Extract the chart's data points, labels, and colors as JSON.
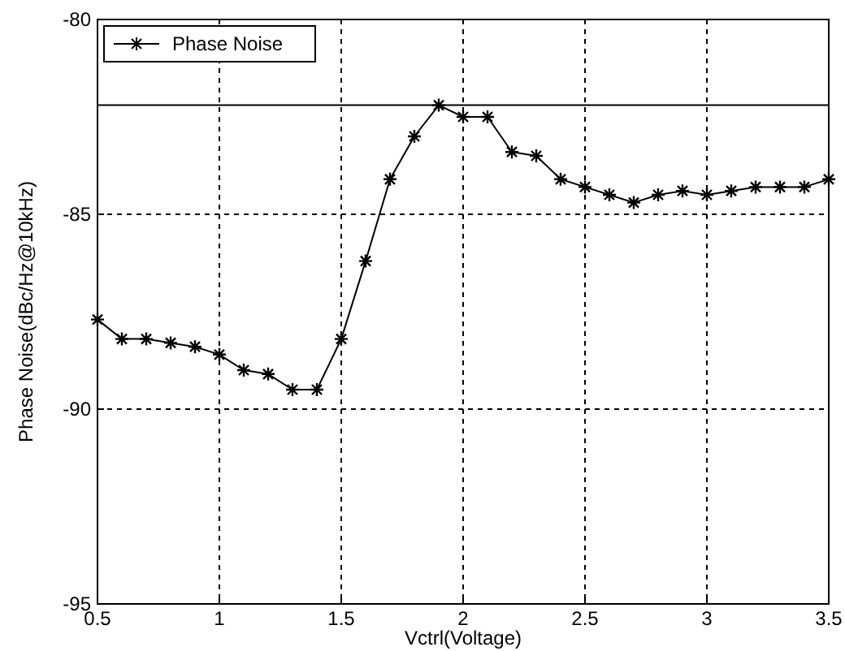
{
  "chart_data": {
    "type": "line",
    "xlabel": "Vctrl(Voltage)",
    "ylabel": "Phase Noise(dBc/Hz@10kHz)",
    "x": [
      0.5,
      0.6,
      0.7,
      0.8,
      0.9,
      1.0,
      1.1,
      1.2,
      1.3,
      1.4,
      1.5,
      1.6,
      1.7,
      1.8,
      1.9,
      2.0,
      2.1,
      2.2,
      2.3,
      2.4,
      2.5,
      2.6,
      2.7,
      2.8,
      2.9,
      3.0,
      3.1,
      3.2,
      3.3,
      3.4,
      3.5
    ],
    "series": [
      {
        "name": "Phase Noise",
        "color": "#000000",
        "values": [
          -87.7,
          -88.2,
          -88.2,
          -88.3,
          -88.4,
          -88.6,
          -89.0,
          -89.1,
          -89.5,
          -89.5,
          -88.2,
          -86.2,
          -84.1,
          -83.0,
          -82.2,
          -82.5,
          -82.5,
          -83.4,
          -83.5,
          -84.1,
          -84.3,
          -84.5,
          -84.7,
          -84.5,
          -84.4,
          -84.5,
          -84.4,
          -84.3,
          -84.3,
          -84.3,
          -84.1
        ]
      }
    ],
    "xlim": [
      0.5,
      3.5
    ],
    "xticks": [
      0.5,
      1,
      1.5,
      2,
      2.5,
      3,
      3.5
    ],
    "ylim": [
      -95,
      -80
    ],
    "yticks": [
      -95,
      -90,
      -85,
      -80
    ],
    "ref_lines": [
      {
        "axis": "y",
        "value": -82.2,
        "color": "#000000",
        "line_style": "solid"
      }
    ],
    "grid": true,
    "legend": "top left",
    "marker": "cross",
    "line_style": "solid"
  }
}
